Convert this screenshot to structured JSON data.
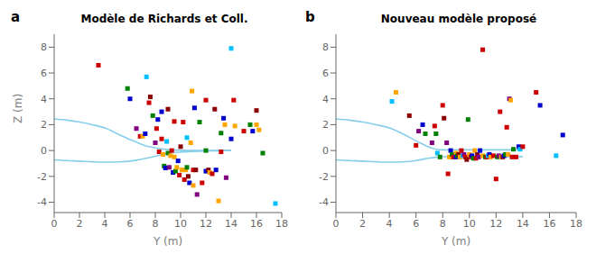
{
  "chart_data": [
    {
      "type": "scatter",
      "title": "Modèle de Richards et Coll.",
      "annotations": [
        "a"
      ],
      "xlabel": "Y (m)",
      "ylabel": "Z (m)",
      "xlim": [
        0,
        18
      ],
      "ylim": [
        -4.8,
        9.0
      ],
      "xticks": [
        0,
        2,
        4,
        6,
        8,
        10,
        12,
        14,
        16,
        18
      ],
      "yticks": [
        -4,
        -2,
        0,
        2,
        4,
        6,
        8
      ],
      "grid": false,
      "series": [
        {
          "type": "scatter",
          "marker": "square",
          "x": [
            3.5,
            5.8,
            6.0,
            6.5,
            6.8,
            7.0,
            7.2,
            7.3,
            7.5,
            7.6,
            7.8,
            8.0,
            8.1,
            8.2,
            8.3,
            8.5,
            8.5,
            8.6,
            8.7,
            8.8,
            8.9,
            9.0,
            9.0,
            9.1,
            9.2,
            9.3,
            9.4,
            9.5,
            9.5,
            9.6,
            9.7,
            9.8,
            9.9,
            10.0,
            10.1,
            10.2,
            10.3,
            10.4,
            10.5,
            10.5,
            10.6,
            10.7,
            10.8,
            10.9,
            11.0,
            11.0,
            11.1,
            11.2,
            11.3,
            11.5,
            11.7,
            12.0,
            12.0,
            12.0,
            12.2,
            12.3,
            12.5,
            12.7,
            12.8,
            13.0,
            13.2,
            13.2,
            13.4,
            13.5,
            13.6,
            14.0,
            14.0,
            14.2,
            14.3,
            15.0,
            15.5,
            15.7,
            16.0,
            16.0,
            16.2,
            16.5,
            17.5
          ],
          "values": [
            6.6,
            4.8,
            4.0,
            1.7,
            1.1,
            1.1,
            1.3,
            5.7,
            3.7,
            4.15,
            2.7,
            0.6,
            1.7,
            2.4,
            -0.1,
            0.9,
            3.0,
            -0.3,
            -1.2,
            -1.35,
            0.7,
            3.2,
            -0.2,
            -1.3,
            -0.4,
            0.0,
            -1.7,
            -0.5,
            2.25,
            -1.6,
            -1.3,
            -0.8,
            -1.9,
            0.3,
            -1.5,
            2.2,
            -2.25,
            -1.5,
            1.0,
            -1.3,
            -2.0,
            -2.5,
            0.6,
            4.6,
            -1.5,
            -2.7,
            3.3,
            -1.5,
            -3.4,
            2.2,
            -2.5,
            -1.6,
            3.9,
            0.0,
            -1.5,
            -1.7,
            -1.8,
            3.2,
            -1.5,
            -3.9,
            1.35,
            -0.1,
            2.5,
            2.0,
            -2.1,
            7.9,
            0.9,
            3.9,
            1.9,
            1.5,
            2.0,
            1.5,
            3.1,
            2.0,
            1.6,
            -0.2,
            -4.1
          ],
          "colors": [
            "#CC0000",
            "#008000",
            "#0000CC",
            "#800080",
            "#CC0000",
            "#FFA500",
            "#0000CC",
            "#00BFFF",
            "#CC0000",
            "#8B0000",
            "#008000",
            "#800080",
            "#CC0000",
            "#0000CC",
            "#CC0000",
            "#CC0000",
            "#0000CC",
            "#FFA500",
            "#008000",
            "#0000CC",
            "#00BFFF",
            "#8B0000",
            "#008000",
            "#800080",
            "#FFA500",
            "#CC0000",
            "#0000CC",
            "#FFA500",
            "#CC0000",
            "#008000",
            "#FFA500",
            "#0000CC",
            "#CC0000",
            "#8B0000",
            "#FFA500",
            "#CC0000",
            "#CC0000",
            "#FFA500",
            "#00BFFF",
            "#008000",
            "#8B0000",
            "#0000CC",
            "#FFA500",
            "#FFA500",
            "#CC0000",
            "#FFA500",
            "#0000CC",
            "#8B0000",
            "#800080",
            "#008000",
            "#CC0000",
            "#0000CC",
            "#CC0000",
            "#008000",
            "#8B0000",
            "#FFA500",
            "#CC0000",
            "#8B0000",
            "#0000CC",
            "#FFA500",
            "#008000",
            "#CC0000",
            "#0000CC",
            "#FFA500",
            "#800080",
            "#00BFFF",
            "#0000CC",
            "#CC0000",
            "#FFA500",
            "#CC0000",
            "#008000",
            "#0000CC",
            "#8B0000",
            "#FFA500",
            "#FFA500",
            "#008000",
            "#00BFFF"
          ]
        },
        {
          "type": "line",
          "color": "#87CEEB",
          "x": [
            0,
            1,
            2,
            3,
            4,
            5,
            6,
            6.5,
            7,
            7.5,
            8,
            8.5,
            9,
            10,
            11,
            12,
            13,
            14
          ],
          "values": [
            2.45,
            2.35,
            2.2,
            2.0,
            1.75,
            1.3,
            0.85,
            0.65,
            0.45,
            0.3,
            0.2,
            0.12,
            0.07,
            0.02,
            0.0,
            0.0,
            0.0,
            0.02
          ]
        },
        {
          "type": "line",
          "color": "#87CEEB",
          "x": [
            0,
            1,
            2,
            3,
            4,
            5,
            6,
            6.5,
            7,
            7.5,
            8,
            8.5,
            9,
            10,
            11,
            12,
            13,
            14
          ],
          "values": [
            -0.72,
            -0.78,
            -0.82,
            -0.87,
            -0.9,
            -0.88,
            -0.82,
            -0.75,
            -0.65,
            -0.55,
            -0.44,
            -0.32,
            -0.22,
            -0.12,
            -0.07,
            -0.04,
            -0.02,
            0.0
          ]
        }
      ]
    },
    {
      "type": "scatter",
      "title": "Nouveau modèle proposé",
      "annotations": [
        "b"
      ],
      "xlabel": "Y (m)",
      "xlim": [
        0,
        18
      ],
      "ylim": [
        -4.8,
        9.0
      ],
      "xticks": [
        0,
        2,
        4,
        6,
        8,
        10,
        12,
        14,
        16,
        18
      ],
      "yticks": [
        -4,
        -2,
        0,
        2,
        4,
        6,
        8
      ],
      "grid": false,
      "series": [
        {
          "type": "scatter",
          "marker": "square",
          "x": [
            4.2,
            4.5,
            5.5,
            6.0,
            6.2,
            6.5,
            6.7,
            7.2,
            7.4,
            7.5,
            7.6,
            7.8,
            8.0,
            8.1,
            8.3,
            8.4,
            8.5,
            8.6,
            8.7,
            8.8,
            9.0,
            9.0,
            9.1,
            9.2,
            9.3,
            9.4,
            9.5,
            9.6,
            9.7,
            9.8,
            9.9,
            10.0,
            10.1,
            10.2,
            10.3,
            10.4,
            10.5,
            10.6,
            10.7,
            10.8,
            11.0,
            11.0,
            11.2,
            11.3,
            11.4,
            11.5,
            11.6,
            11.8,
            12.0,
            12.1,
            12.2,
            12.3,
            12.4,
            12.5,
            12.6,
            12.7,
            12.8,
            12.9,
            13.0,
            13.1,
            13.2,
            13.3,
            13.5,
            13.7,
            13.8,
            14.0,
            15.0,
            15.3,
            16.5,
            17.0
          ],
          "values": [
            3.8,
            4.5,
            2.7,
            0.4,
            1.5,
            2.0,
            1.3,
            0.6,
            1.9,
            1.3,
            -0.2,
            -0.5,
            3.5,
            2.5,
            0.6,
            -1.8,
            -0.5,
            0.0,
            -0.3,
            -0.5,
            -0.2,
            -0.5,
            -0.4,
            -0.3,
            -0.5,
            0.0,
            -0.4,
            -0.3,
            -0.5,
            -0.7,
            2.4,
            -0.3,
            -0.5,
            -0.4,
            -0.6,
            0.0,
            -0.6,
            -0.3,
            -0.5,
            0.0,
            7.8,
            -0.4,
            -0.5,
            -0.5,
            -0.4,
            -0.3,
            -0.5,
            -0.4,
            -2.2,
            -0.5,
            -0.4,
            3.0,
            -0.5,
            -0.5,
            -0.4,
            -0.3,
            1.8,
            -0.3,
            4.0,
            3.9,
            -0.5,
            0.1,
            -0.5,
            0.3,
            0.1,
            0.3,
            4.5,
            3.5,
            -0.4,
            1.2
          ],
          "colors": [
            "#00BFFF",
            "#FFA500",
            "#8B0000",
            "#CC0000",
            "#800080",
            "#0000CC",
            "#008000",
            "#800080",
            "#CC0000",
            "#008000",
            "#00BFFF",
            "#008000",
            "#CC0000",
            "#8B0000",
            "#800080",
            "#CC0000",
            "#FFA500",
            "#0000CC",
            "#008000",
            "#CC0000",
            "#FFA500",
            "#0000CC",
            "#008000",
            "#8B0000",
            "#FFA500",
            "#CC0000",
            "#00BFFF",
            "#800080",
            "#CC0000",
            "#8B0000",
            "#008000",
            "#FFA500",
            "#CC0000",
            "#0000CC",
            "#008000",
            "#FFA500",
            "#CC0000",
            "#8B0000",
            "#800080",
            "#0000CC",
            "#CC0000",
            "#FFA500",
            "#008000",
            "#CC0000",
            "#00BFFF",
            "#0000CC",
            "#FFA500",
            "#CC0000",
            "#CC0000",
            "#008000",
            "#800080",
            "#CC0000",
            "#FFA500",
            "#8B0000",
            "#0000CC",
            "#008000",
            "#CC0000",
            "#FFA500",
            "#800080",
            "#FFA500",
            "#CC0000",
            "#008000",
            "#CC0000",
            "#0000CC",
            "#00BFFF",
            "#CC0000",
            "#CC0000",
            "#0000CC",
            "#00BFFF",
            "#0000CC"
          ]
        },
        {
          "type": "line",
          "color": "#87CEEB",
          "x": [
            0,
            1,
            2,
            3,
            4,
            5,
            6,
            6.5,
            7,
            7.5,
            8,
            9,
            10,
            11,
            12,
            13,
            14
          ],
          "values": [
            2.45,
            2.35,
            2.2,
            2.0,
            1.75,
            1.3,
            0.75,
            0.5,
            0.25,
            0.1,
            0.05,
            0.05,
            0.05,
            0.05,
            0.05,
            0.05,
            0.05
          ]
        },
        {
          "type": "line",
          "color": "#87CEEB",
          "x": [
            0,
            1,
            2,
            3,
            4,
            5,
            6,
            6.5,
            7,
            7.5,
            8,
            9,
            10,
            11,
            12,
            13,
            14
          ],
          "values": [
            -0.72,
            -0.78,
            -0.82,
            -0.87,
            -0.9,
            -0.88,
            -0.78,
            -0.68,
            -0.58,
            -0.52,
            -0.48,
            -0.47,
            -0.47,
            -0.47,
            -0.47,
            -0.47,
            -0.47
          ]
        }
      ]
    }
  ]
}
